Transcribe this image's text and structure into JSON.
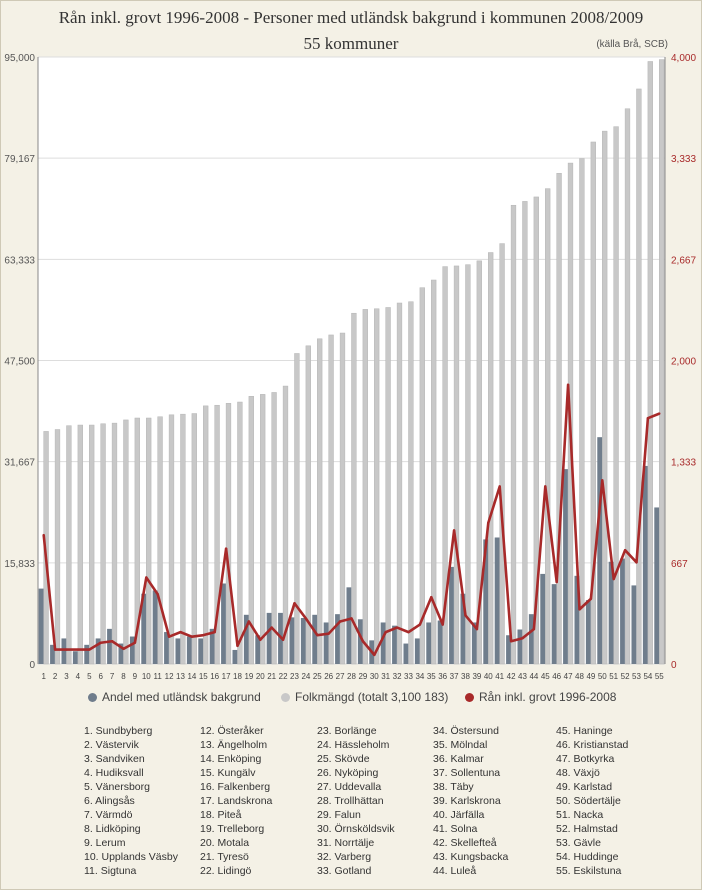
{
  "title": "Rån inkl. grovt 1996-2008  -  Personer med utländsk bakgrund i kommunen 2008/2009",
  "subtitle": "55 kommuner",
  "source": "(källa Brå, SCB)",
  "chart_data": {
    "type": "bar",
    "categories": [
      "1",
      "2",
      "3",
      "4",
      "5",
      "6",
      "7",
      "8",
      "9",
      "10",
      "11",
      "12",
      "13",
      "14",
      "15",
      "16",
      "17",
      "18",
      "19",
      "20",
      "21",
      "22",
      "23",
      "24",
      "25",
      "26",
      "27",
      "28",
      "29",
      "30",
      "31",
      "32",
      "33",
      "34",
      "35",
      "36",
      "37",
      "38",
      "39",
      "40",
      "41",
      "42",
      "43",
      "44",
      "45",
      "46",
      "47",
      "48",
      "49",
      "50",
      "51",
      "52",
      "53",
      "54",
      "55"
    ],
    "y_left": {
      "ylim": [
        0,
        95000
      ],
      "ticks": [
        "0",
        "15,833",
        "31,667",
        "47,500",
        "63,333",
        "79,167",
        "95,000"
      ]
    },
    "y_right": {
      "ylim": [
        0,
        4000
      ],
      "ticks": [
        "0",
        "667",
        "1,333",
        "2,000",
        "2,667",
        "3,333",
        "4,000"
      ]
    },
    "colors": {
      "andel": "#6f7d8c",
      "folk": "#c8c8c8",
      "ran": "#a82a2a"
    },
    "series": [
      {
        "name": "Andel med utländsk bakgrund",
        "axis": "left",
        "values": [
          11800,
          3000,
          4000,
          2000,
          3000,
          4000,
          5500,
          3200,
          4300,
          11000,
          11500,
          5000,
          4000,
          4300,
          4000,
          5500,
          12600,
          2200,
          7700,
          4500,
          8000,
          8000,
          7300,
          7200,
          7700,
          6500,
          7800,
          12000,
          7000,
          3700,
          6500,
          6000,
          3200,
          4000,
          6500,
          6800,
          15200,
          11000,
          6500,
          19500,
          19800,
          4500,
          5400,
          7800,
          14100,
          12500,
          30500,
          13800,
          10000,
          35500,
          16000,
          16500,
          12300,
          31000,
          24500
        ]
      },
      {
        "name": "Folkmängd (totalt 3,100 183)",
        "axis": "left",
        "values": [
          36400,
          36700,
          37300,
          37400,
          37400,
          37600,
          37700,
          38200,
          38500,
          38500,
          38700,
          39000,
          39100,
          39200,
          40400,
          40500,
          40800,
          41000,
          41900,
          42200,
          42500,
          43500,
          48600,
          49800,
          50900,
          51500,
          51800,
          54900,
          55500,
          55600,
          55800,
          56500,
          56700,
          58900,
          60100,
          62200,
          62300,
          62500,
          63100,
          64400,
          65800,
          71800,
          72400,
          73100,
          74400,
          76800,
          78400,
          79100,
          81700,
          83400,
          84100,
          86900,
          90000,
          94300,
          94600
        ]
      },
      {
        "name": "Rån inkl. grovt 1996-2008",
        "axis": "right",
        "values": [
          850,
          95,
          95,
          95,
          95,
          140,
          150,
          100,
          140,
          570,
          460,
          180,
          210,
          180,
          190,
          210,
          760,
          120,
          280,
          160,
          240,
          160,
          400,
          300,
          190,
          200,
          280,
          300,
          150,
          60,
          210,
          240,
          210,
          260,
          440,
          260,
          880,
          320,
          230,
          930,
          1170,
          150,
          170,
          230,
          1170,
          540,
          1840,
          360,
          430,
          1210,
          560,
          750,
          670,
          1620,
          1650
        ]
      }
    ]
  },
  "legend": [
    {
      "label": "Andel med utländsk bakgrund",
      "color": "#6f7d8c"
    },
    {
      "label": "Folkmängd (totalt 3,100 183)",
      "color": "#c8c8c8"
    },
    {
      "label": "Rån inkl. grovt 1996-2008",
      "color": "#a82a2a"
    }
  ],
  "kommuner": [
    "1. Sundbyberg",
    "2. Västervik",
    "3. Sandviken",
    "4. Hudiksvall",
    "5. Vänersborg",
    "6. Alingsås",
    "7. Värmdö",
    "8. Lidköping",
    "9. Lerum",
    "10. Upplands Väsby",
    "11. Sigtuna",
    "12. Österåker",
    "13. Ängelholm",
    "14. Enköping",
    "15. Kungälv",
    "16. Falkenberg",
    "17. Landskrona",
    "18. Piteå",
    "19. Trelleborg",
    "20. Motala",
    "21. Tyresö",
    "22. Lidingö",
    "23. Borlänge",
    "24. Hässleholm",
    "25. Skövde",
    "26. Nyköping",
    "27. Uddevalla",
    "28. Trollhättan",
    "29. Falun",
    "30. Örnsköldsvik",
    "31. Norrtälje",
    "32. Varberg",
    "33. Gotland",
    "34. Östersund",
    "35. Mölndal",
    "36. Kalmar",
    "37. Sollentuna",
    "38. Täby",
    "39. Karlskrona",
    "40. Järfälla",
    "41. Solna",
    "42. Skellefteå",
    "43. Kungsbacka",
    "44. Luleå",
    "45. Haninge",
    "46. Kristianstad",
    "47. Botkyrka",
    "48. Växjö",
    "49. Karlstad",
    "50. Södertälje",
    "51. Nacka",
    "52. Halmstad",
    "53. Gävle",
    "54. Huddinge",
    "55. Eskilstuna"
  ]
}
